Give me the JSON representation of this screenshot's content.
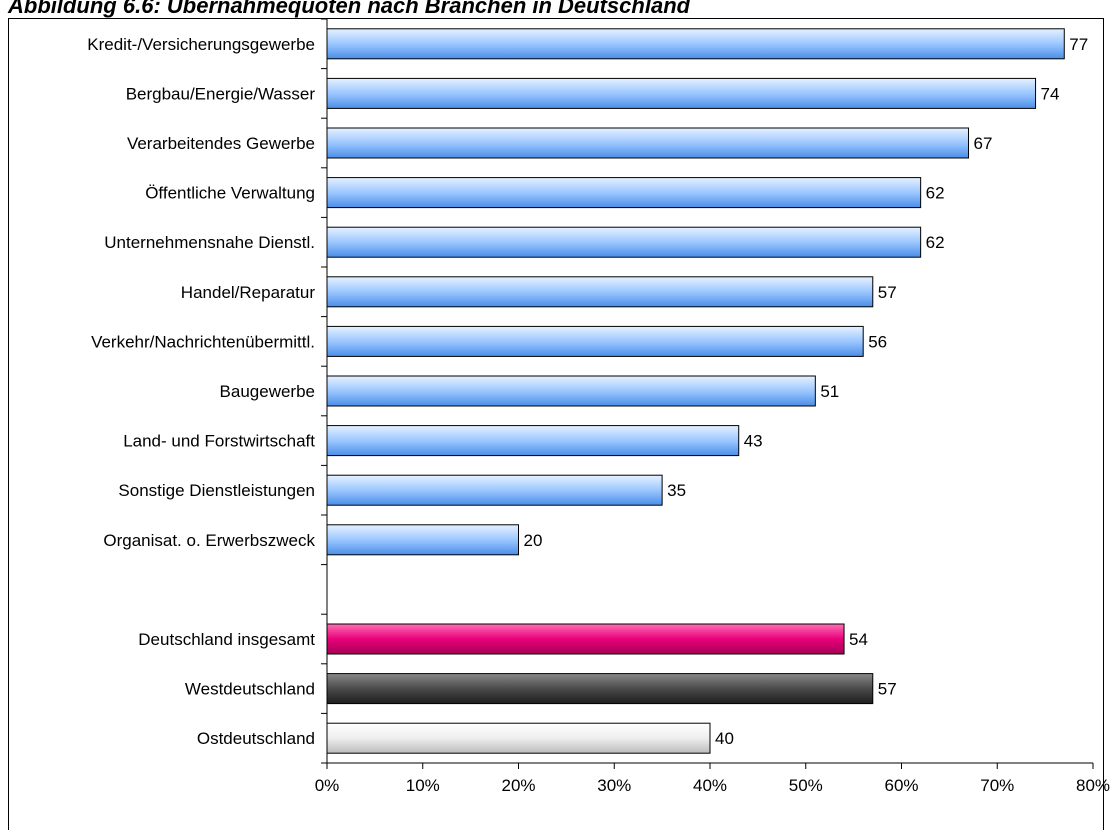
{
  "chart_data": {
    "type": "bar",
    "orientation": "horizontal",
    "title": "Abbildung 6.6: Übernahmequoten nach Branchen in Deutschland",
    "xlim": [
      0,
      80
    ],
    "x_ticks": [
      "0%",
      "10%",
      "20%",
      "30%",
      "40%",
      "50%",
      "60%",
      "70%",
      "80%"
    ],
    "grid": false,
    "legend": "none",
    "categories": [
      "Kredit-/Versicherungsgewerbe",
      "Bergbau/Energie/Wasser",
      "Verarbeitendes Gewerbe",
      "Öffentliche Verwaltung",
      "Unternehmensnahe Dienstl.",
      "Handel/Reparatur",
      "Verkehr/Nachrichtenübermittl.",
      "Baugewerbe",
      "Land- und Forstwirtschaft",
      "Sonstige Dienstleistungen",
      "Organisat. o. Erwerbszweck",
      "",
      "Deutschland insgesamt",
      "Westdeutschland",
      "Ostdeutschland"
    ],
    "values": [
      77,
      74,
      67,
      62,
      62,
      57,
      56,
      51,
      43,
      35,
      20,
      null,
      54,
      57,
      40
    ],
    "value_labels": [
      "77",
      "74",
      "67",
      "62",
      "62",
      "57",
      "56",
      "51",
      "43",
      "35",
      "20",
      "",
      "54",
      "57",
      "40"
    ],
    "bar_styles": [
      "blue",
      "blue",
      "blue",
      "blue",
      "blue",
      "blue",
      "blue",
      "blue",
      "blue",
      "blue",
      "blue",
      "none",
      "magenta",
      "dark",
      "light"
    ],
    "colors": {
      "blue_light": "#d6e8ff",
      "blue_dark": "#5a9cf0",
      "magenta_light": "#f03a96",
      "magenta_dark": "#c00060",
      "dark_light": "#7a7a7a",
      "dark_dark": "#262626",
      "light_light": "#ffffff",
      "light_dark": "#c4c4c4"
    }
  }
}
